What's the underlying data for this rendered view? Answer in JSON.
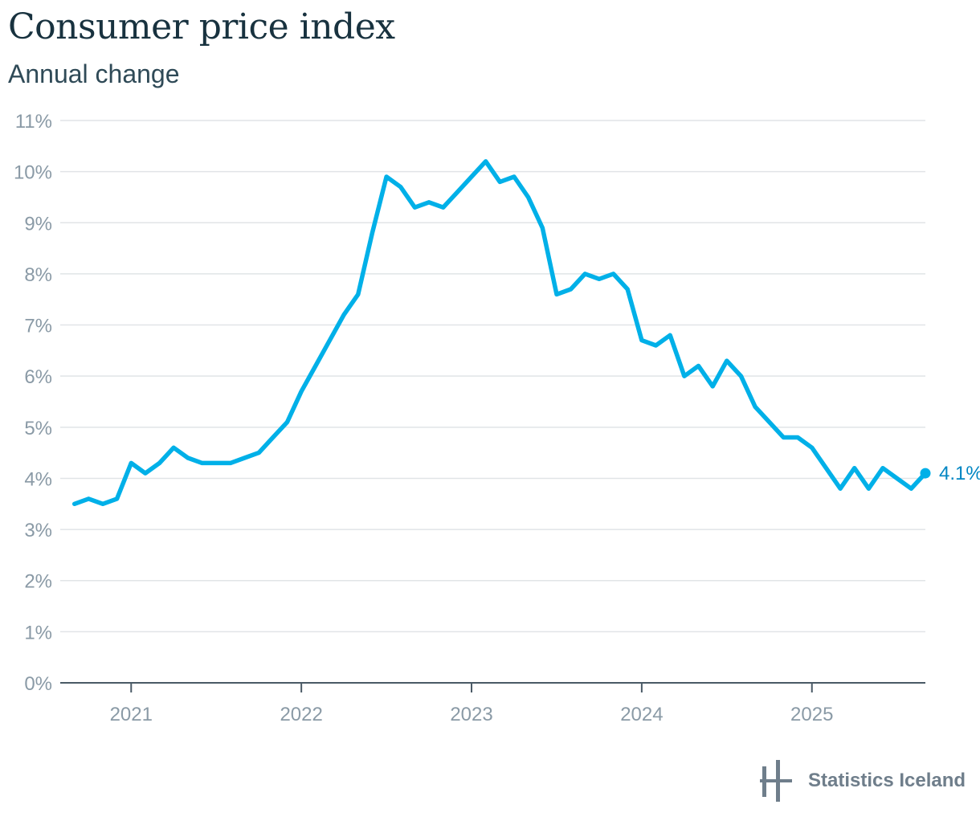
{
  "title": "Consumer price index",
  "subtitle": "Annual change",
  "brand": {
    "name": "Statistics Iceland",
    "icon": "statistics-iceland-logo-icon"
  },
  "colors": {
    "line": "#00b0e8",
    "end_label": "#0086c3",
    "grid": "#e1e4e7",
    "axis": "#4a5a66",
    "tick_text": "#8a9aa6"
  },
  "chart_data": {
    "type": "line",
    "title": "Consumer price index",
    "subtitle": "Annual change",
    "xlabel": "",
    "ylabel": "",
    "ylim": [
      0,
      11
    ],
    "yticks": [
      0,
      1,
      2,
      3,
      4,
      5,
      6,
      7,
      8,
      9,
      10,
      11
    ],
    "ytick_labels": [
      "0%",
      "1%",
      "2%",
      "3%",
      "4%",
      "5%",
      "6%",
      "7%",
      "8%",
      "9%",
      "10%",
      "11%"
    ],
    "x_range": [
      "2020-08",
      "2025-09"
    ],
    "xtick_labels": [
      "2021",
      "2022",
      "2023",
      "2024",
      "2025"
    ],
    "grid": true,
    "end_label": "4.1%",
    "series": [
      {
        "x": [
          "2020-09",
          "2020-10",
          "2020-11",
          "2020-12",
          "2021-01",
          "2021-02",
          "2021-03",
          "2021-04",
          "2021-05",
          "2021-06",
          "2021-07",
          "2021-08",
          "2021-09",
          "2021-10",
          "2021-11",
          "2021-12",
          "2022-01",
          "2022-02",
          "2022-03",
          "2022-04",
          "2022-05",
          "2022-06",
          "2022-07",
          "2022-08",
          "2022-09",
          "2022-10",
          "2022-11",
          "2022-12",
          "2023-01",
          "2023-02",
          "2023-03",
          "2023-04",
          "2023-05",
          "2023-06",
          "2023-07",
          "2023-08",
          "2023-09",
          "2023-10",
          "2023-11",
          "2023-12",
          "2024-01",
          "2024-02",
          "2024-03",
          "2024-04",
          "2024-05",
          "2024-06",
          "2024-07",
          "2024-08",
          "2024-09",
          "2024-10",
          "2024-11",
          "2024-12",
          "2025-01",
          "2025-02",
          "2025-03",
          "2025-04",
          "2025-05",
          "2025-06",
          "2025-07",
          "2025-08",
          "2025-09"
        ],
        "values": [
          3.5,
          3.6,
          3.5,
          3.6,
          4.3,
          4.1,
          4.3,
          4.6,
          4.4,
          4.3,
          4.3,
          4.3,
          4.4,
          4.5,
          4.8,
          5.1,
          5.7,
          6.2,
          6.7,
          7.2,
          7.6,
          8.8,
          9.9,
          9.7,
          9.3,
          9.4,
          9.3,
          9.6,
          9.9,
          10.2,
          9.8,
          9.9,
          9.5,
          8.9,
          7.6,
          7.7,
          8.0,
          7.9,
          8.0,
          7.7,
          6.7,
          6.6,
          6.8,
          6.0,
          6.2,
          5.8,
          6.3,
          6.0,
          5.4,
          5.1,
          4.8,
          4.8,
          4.6,
          4.2,
          3.8,
          4.2,
          3.8,
          4.2,
          4.0,
          3.8,
          4.1
        ]
      }
    ]
  }
}
